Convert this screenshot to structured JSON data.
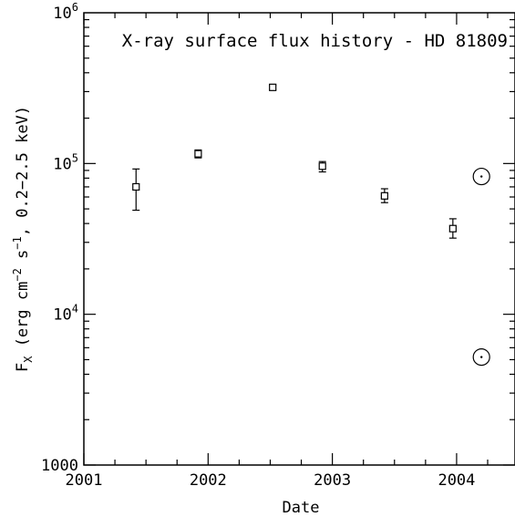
{
  "chart_data": {
    "type": "scatter",
    "title": "X-ray surface flux history - HD 81809",
    "xlabel": "Date",
    "ylabel_main": "F",
    "ylabel_sub": "X",
    "ylabel_rest": " (erg cm",
    "ylabel_sup1": "−2",
    "ylabel_mid": " s",
    "ylabel_sup2": "−1",
    "ylabel_end": ", 0.2−2.5 keV)",
    "xlim": [
      2001.0,
      2004.47
    ],
    "ylim": [
      1000,
      1000000
    ],
    "yscale": "log",
    "x_ticks": [
      {
        "value": 2001,
        "label": "2001"
      },
      {
        "value": 2002,
        "label": "2002"
      },
      {
        "value": 2003,
        "label": "2003"
      },
      {
        "value": 2004,
        "label": "2004"
      }
    ],
    "y_ticks": [
      {
        "value": 1000,
        "base": "1000",
        "exp": ""
      },
      {
        "value": 10000,
        "base": "10",
        "exp": "4"
      },
      {
        "value": 100000,
        "base": "10",
        "exp": "5"
      },
      {
        "value": 1000000,
        "base": "10",
        "exp": "6"
      }
    ],
    "series": [
      {
        "marker": "square",
        "points": [
          {
            "x": 2001.42,
            "y": 70000,
            "ylo": 49000,
            "yhi": 92000
          },
          {
            "x": 2001.92,
            "y": 116000,
            "ylo": 109000,
            "yhi": 123000
          },
          {
            "x": 2002.52,
            "y": 320000,
            "ylo": 310000,
            "yhi": 331000
          },
          {
            "x": 2002.92,
            "y": 96000,
            "ylo": 88000,
            "yhi": 103000
          },
          {
            "x": 2003.42,
            "y": 61000,
            "ylo": 55000,
            "yhi": 68000
          },
          {
            "x": 2003.97,
            "y": 37000,
            "ylo": 32000,
            "yhi": 43000
          }
        ]
      },
      {
        "marker": "sun",
        "points": [
          {
            "x": 2004.2,
            "y": 82000
          },
          {
            "x": 2004.2,
            "y": 5200
          }
        ]
      }
    ]
  }
}
